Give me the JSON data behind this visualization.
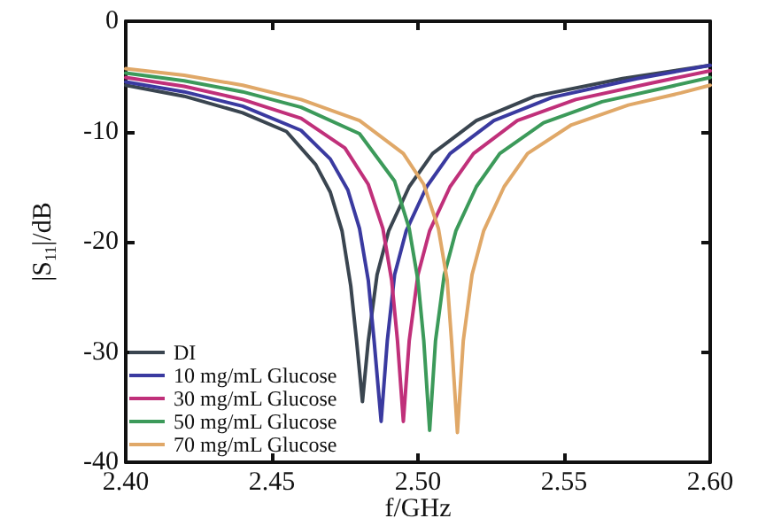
{
  "chart_data": {
    "type": "line",
    "xlabel": "f/GHz",
    "ylabel": "|S$_{11}$|/dB",
    "xlim": [
      2.4,
      2.6
    ],
    "xticks": [
      {
        "value": 2.4,
        "label": "2.40"
      },
      {
        "value": 2.45,
        "label": "2.45"
      },
      {
        "value": 2.5,
        "label": "2.50"
      },
      {
        "value": 2.55,
        "label": "2.55"
      },
      {
        "value": 2.6,
        "label": "2.60"
      }
    ],
    "ylim": [
      -40,
      0
    ],
    "yticks": [
      -40,
      -30,
      -20,
      -10,
      0
    ],
    "grid": false,
    "legend": "bottom left",
    "marker": "none",
    "line_style": "solid",
    "series": [
      {
        "name": "DI",
        "color": "#3a4550",
        "x": [
          2.4,
          2.42,
          2.44,
          2.455,
          2.465,
          2.47,
          2.474,
          2.477,
          2.479,
          2.481,
          2.483,
          2.486,
          2.49,
          2.497,
          2.505,
          2.52,
          2.54,
          2.57,
          2.6
        ],
        "values": [
          -5.8,
          -6.8,
          -8.3,
          -10,
          -13,
          -15.5,
          -19,
          -24,
          -29,
          -34.5,
          -29,
          -23,
          -19,
          -15,
          -12,
          -9,
          -6.8,
          -5.2,
          -4
        ]
      },
      {
        "name": "10 mg/mL Glucose",
        "color": "#3a3aa0",
        "x": [
          2.4,
          2.42,
          2.44,
          2.46,
          2.47,
          2.476,
          2.48,
          2.483,
          2.485,
          2.4874,
          2.4895,
          2.492,
          2.496,
          2.503,
          2.511,
          2.526,
          2.546,
          2.575,
          2.6
        ],
        "values": [
          -5.5,
          -6.4,
          -7.7,
          -9.9,
          -12.5,
          -15.3,
          -18.8,
          -23.5,
          -29,
          -36.3,
          -29,
          -23,
          -19,
          -15,
          -12,
          -9,
          -6.9,
          -5.2,
          -4
        ]
      },
      {
        "name": "30 mg/mL Glucose",
        "color": "#c0307a",
        "x": [
          2.4,
          2.42,
          2.44,
          2.46,
          2.475,
          2.483,
          2.488,
          2.491,
          2.493,
          2.495,
          2.497,
          2.5,
          2.504,
          2.511,
          2.519,
          2.534,
          2.554,
          2.58,
          2.6
        ],
        "values": [
          -5.1,
          -5.9,
          -7.1,
          -8.8,
          -11.5,
          -14.8,
          -18.8,
          -23.5,
          -29,
          -36.3,
          -29,
          -23,
          -19,
          -15,
          -12,
          -9,
          -7.1,
          -5.6,
          -4.5
        ]
      },
      {
        "name": "50 mg/mL Glucose",
        "color": "#3c9a5a",
        "x": [
          2.4,
          2.42,
          2.44,
          2.46,
          2.48,
          2.492,
          2.497,
          2.5,
          2.502,
          2.504,
          2.506,
          2.509,
          2.513,
          2.52,
          2.528,
          2.543,
          2.563,
          2.585,
          2.6
        ],
        "values": [
          -4.7,
          -5.4,
          -6.4,
          -7.8,
          -10.2,
          -14.5,
          -18.8,
          -23.5,
          -29,
          -37.1,
          -29,
          -23,
          -19,
          -15,
          -12,
          -9.2,
          -7.3,
          -6,
          -5.1
        ]
      },
      {
        "name": "70 mg/mL Glucose",
        "color": "#e0a868",
        "x": [
          2.4,
          2.42,
          2.44,
          2.46,
          2.48,
          2.495,
          2.502,
          2.507,
          2.51,
          2.5115,
          2.5135,
          2.5155,
          2.5185,
          2.5225,
          2.5295,
          2.5375,
          2.5525,
          2.572,
          2.59,
          2.6
        ],
        "values": [
          -4.3,
          -4.9,
          -5.8,
          -7.1,
          -9,
          -12,
          -14.8,
          -18.8,
          -23.5,
          -29,
          -37.3,
          -29,
          -23,
          -19,
          -15,
          -12,
          -9.4,
          -7.6,
          -6.5,
          -5.8
        ]
      }
    ]
  }
}
